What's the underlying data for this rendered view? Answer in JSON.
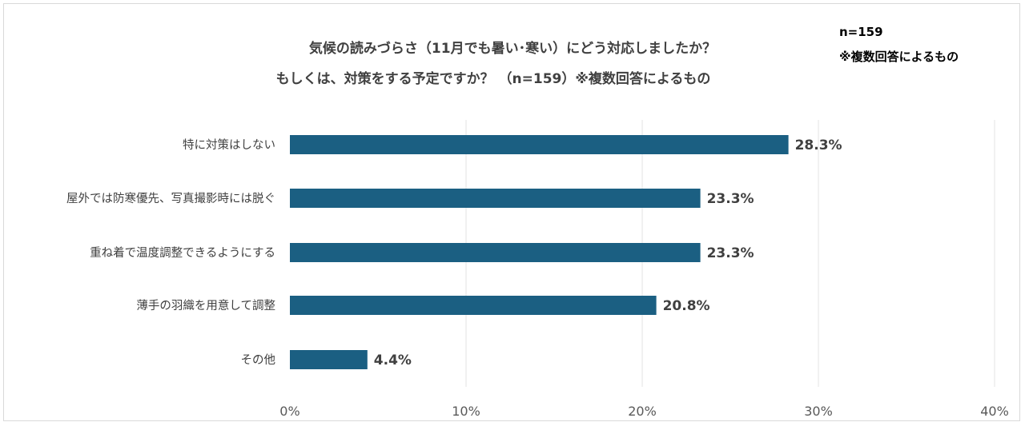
{
  "chart_data": {
    "type": "bar",
    "orientation": "horizontal",
    "title_lines": [
      "気候の読みづらさ（11月でも暑い･寒い）にどう対応しましたか？",
      "もしくは、対策をする予定ですか？ （n=159）※複数回答によるもの"
    ],
    "note_lines": [
      "n=159",
      "※複数回答によるもの"
    ],
    "categories": [
      "特に対策はしない",
      "屋外では防寒優先、写真撮影時には脱ぐ",
      "重ね着で温度調整できるようにする",
      "薄手の羽織を用意して調整",
      "その他"
    ],
    "values": [
      28.3,
      23.3,
      23.3,
      20.8,
      4.4
    ],
    "value_labels": [
      "28.3%",
      "23.3%",
      "23.3%",
      "20.8%",
      "4.4%"
    ],
    "xlim": [
      0,
      40
    ],
    "ticks": [
      0,
      10,
      20,
      30,
      40
    ],
    "tick_labels": [
      "0%",
      "10%",
      "20%",
      "30%",
      "40%"
    ],
    "grid": true,
    "bar_color": "#1b5f82"
  }
}
